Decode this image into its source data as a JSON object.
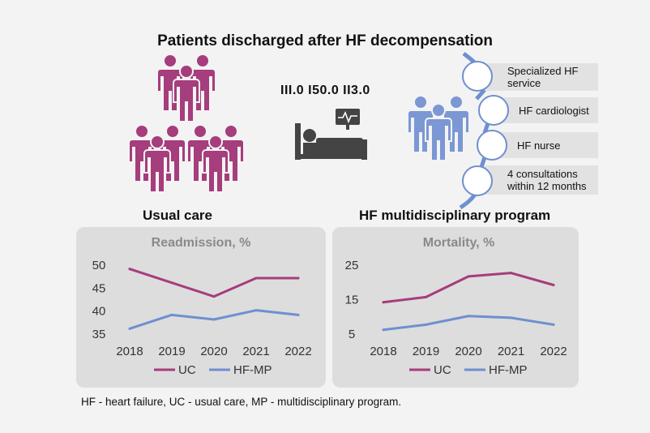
{
  "header": {
    "title": "Patients discharged after HF decompensation",
    "codes": "III.0  I50.0  II3.0"
  },
  "labels": {
    "usual_care": "Usual care",
    "hf_mp": "HF multidisciplinary program"
  },
  "program_steps": [
    {
      "label": "Specialized HF service"
    },
    {
      "label": "HF cardiologist"
    },
    {
      "label": "HF nurse"
    },
    {
      "label": "4 consultations within 12 months"
    }
  ],
  "footnote": "HF - heart failure, UC - usual care, MP - multidisciplinary program.",
  "colors": {
    "uc": "#a63d7c",
    "hf_mp": "#6f8fd0",
    "people_uc": "#a63d7c",
    "people_mp": "#7b97d4",
    "panel": "#dddddd"
  },
  "icons": [
    "person-group-icon",
    "hospital-bed-icon",
    "heart-monitor-icon",
    "chain-link-icon"
  ],
  "chart_data": [
    {
      "type": "line",
      "title": "Readmission, %",
      "x": [
        "2018",
        "2019",
        "2020",
        "2021",
        "2022"
      ],
      "ylim": [
        35,
        50
      ],
      "yticks": [
        50,
        45,
        40,
        35
      ],
      "grid": false,
      "legend": "bottom",
      "series": [
        {
          "name": "UC",
          "values": [
            49,
            46,
            43,
            47,
            47
          ]
        },
        {
          "name": "HF-MP",
          "values": [
            36,
            39,
            38,
            40,
            39
          ]
        }
      ]
    },
    {
      "type": "line",
      "title": "Mortality, %",
      "x": [
        "2018",
        "2019",
        "2020",
        "2021",
        "2022"
      ],
      "ylim": [
        5,
        25
      ],
      "yticks": [
        25,
        15,
        5
      ],
      "grid": false,
      "legend": "bottom",
      "series": [
        {
          "name": "UC",
          "values": [
            14,
            15.5,
            21.5,
            22.5,
            19
          ]
        },
        {
          "name": "HF-MP",
          "values": [
            6,
            7.5,
            10,
            9.5,
            7.5
          ]
        }
      ]
    }
  ]
}
